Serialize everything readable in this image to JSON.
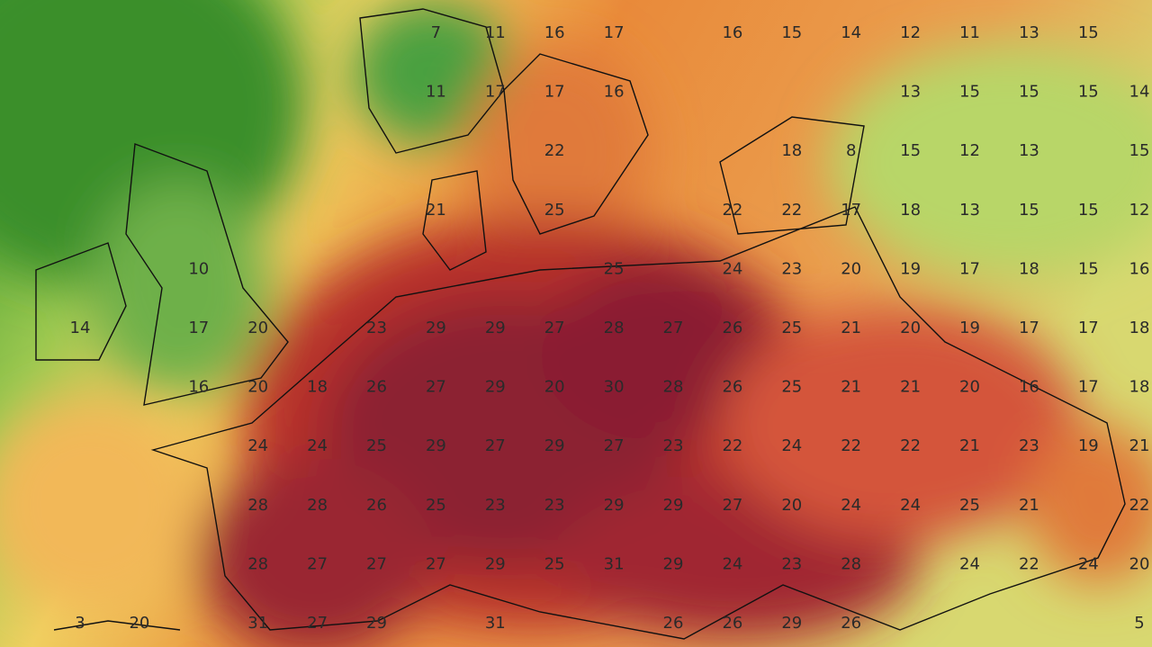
{
  "map": {
    "labels": [
      [
        7,
        11,
        16,
        17,
        16,
        15,
        14,
        12,
        11,
        13,
        15
      ],
      [
        11,
        17,
        17,
        16,
        13,
        15,
        15,
        15,
        14
      ],
      [
        22,
        18,
        8,
        15,
        12,
        13,
        15
      ],
      [
        21,
        25,
        22,
        22,
        17,
        18,
        13,
        15,
        15,
        12
      ],
      [
        10,
        25,
        24,
        23,
        20,
        19,
        17,
        18,
        15,
        16
      ],
      [
        14,
        17,
        20,
        23,
        29,
        29,
        27,
        28,
        27,
        26,
        25,
        21,
        20,
        19,
        17,
        17,
        18
      ],
      [
        16,
        20,
        18,
        26,
        27,
        29,
        20,
        30,
        28,
        26,
        25,
        21,
        21,
        20,
        16,
        17,
        18
      ],
      [
        24,
        24,
        25,
        29,
        27,
        29,
        27,
        23,
        22,
        24,
        22,
        22,
        21,
        23,
        19,
        21
      ],
      [
        28,
        28,
        26,
        25,
        23,
        23,
        29,
        29,
        27,
        20,
        24,
        24,
        25,
        21,
        22
      ],
      [
        28,
        27,
        27,
        27,
        29,
        25,
        31,
        29,
        24,
        23,
        28,
        24,
        22,
        24,
        20
      ],
      [
        3,
        20,
        31,
        27,
        29,
        31,
        26,
        26,
        29,
        26,
        5
      ]
    ]
  }
}
